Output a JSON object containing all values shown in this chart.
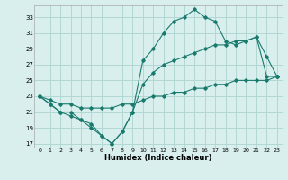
{
  "xlabel": "Humidex (Indice chaleur)",
  "background_color": "#d8efed",
  "grid_color": "#b2d8d4",
  "line_color": "#1a7a6e",
  "xlim": [
    -0.5,
    23.5
  ],
  "ylim": [
    16.5,
    34.5
  ],
  "yticks": [
    17,
    19,
    21,
    23,
    25,
    27,
    29,
    31,
    33
  ],
  "xticks": [
    0,
    1,
    2,
    3,
    4,
    5,
    6,
    7,
    8,
    9,
    10,
    11,
    12,
    13,
    14,
    15,
    16,
    17,
    18,
    19,
    20,
    21,
    22,
    23
  ],
  "lower_x": [
    0,
    1,
    2,
    3,
    4,
    5,
    6,
    7,
    8,
    9,
    10,
    11,
    12,
    13,
    14,
    15,
    16,
    17,
    18,
    19,
    20,
    21,
    22,
    23
  ],
  "lower_y": [
    23,
    22.5,
    22,
    22,
    21.5,
    21.5,
    21.5,
    21.5,
    22,
    22,
    22.5,
    23,
    23,
    23.5,
    23.5,
    24,
    24,
    24.5,
    24.5,
    25,
    25,
    25,
    25,
    25.5
  ],
  "mid_x": [
    0,
    1,
    2,
    3,
    4,
    5,
    6,
    7,
    8,
    9,
    10,
    11,
    12,
    13,
    14,
    15,
    16,
    17,
    18,
    19,
    20,
    21,
    22,
    23
  ],
  "mid_y": [
    23,
    22,
    21,
    20.5,
    20,
    19,
    18,
    17,
    18.5,
    21,
    24.5,
    26,
    27,
    27.5,
    28,
    28.5,
    29,
    29.5,
    29.5,
    30,
    30,
    30.5,
    25.5,
    25.5
  ],
  "upper_x": [
    0,
    1,
    2,
    3,
    4,
    5,
    6,
    7,
    8,
    9,
    10,
    11,
    12,
    13,
    14,
    15,
    16,
    17,
    18,
    19,
    20,
    21,
    22,
    23
  ],
  "upper_y": [
    23,
    22,
    21,
    21,
    20,
    19.5,
    18,
    17,
    18.5,
    21,
    27.5,
    29,
    31,
    32.5,
    33,
    34,
    33,
    32.5,
    30,
    29.5,
    30,
    30.5,
    28,
    25.5
  ]
}
